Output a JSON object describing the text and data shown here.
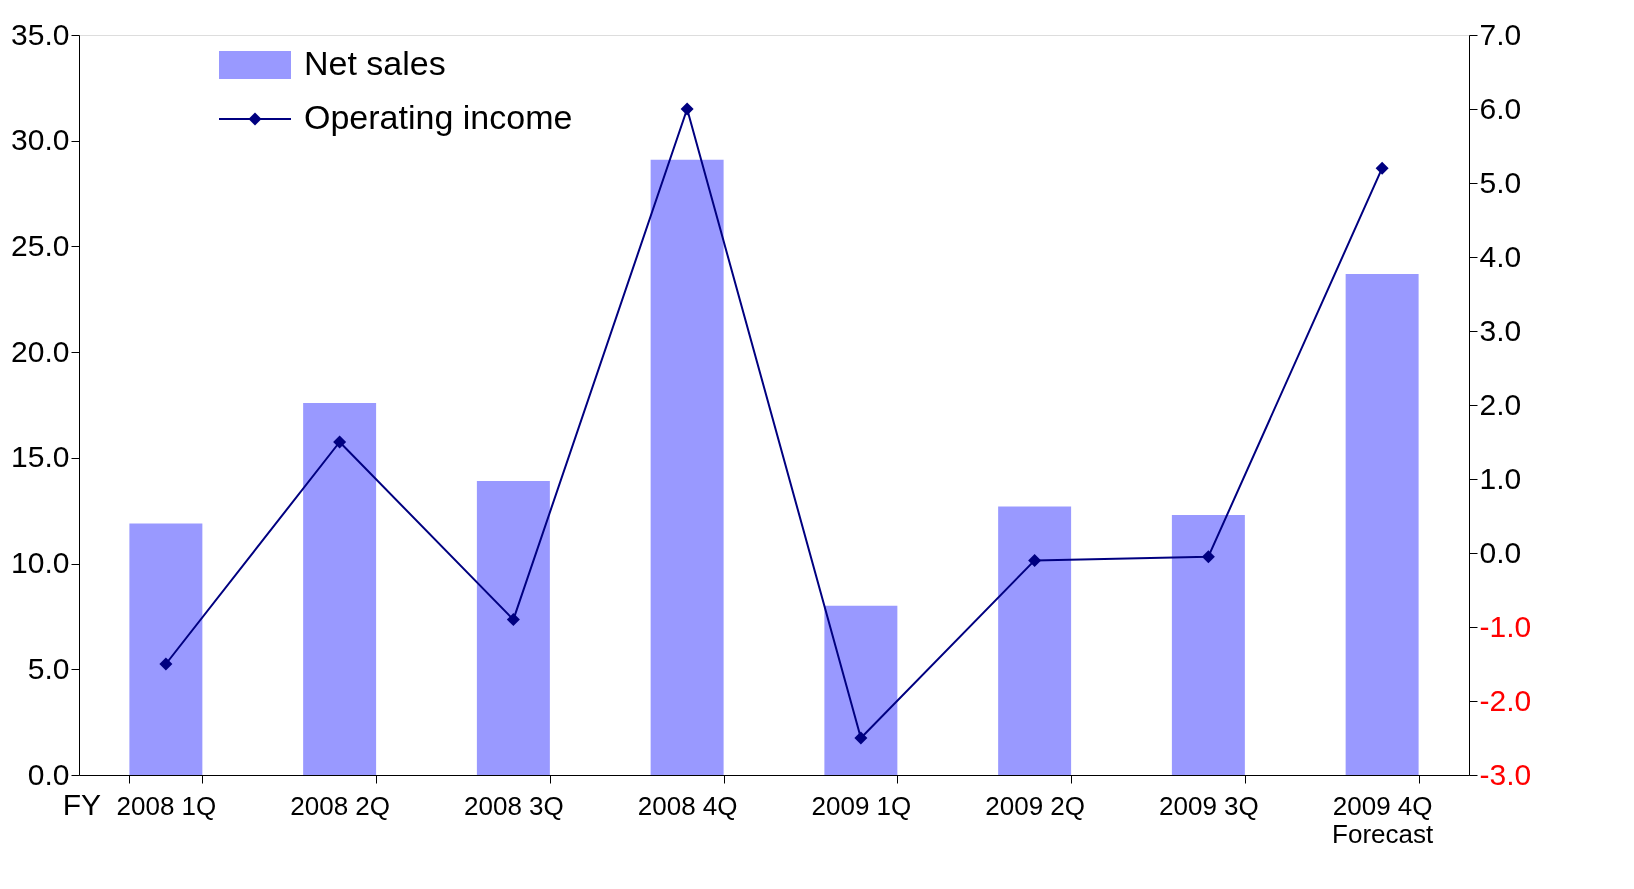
{
  "chart_data": {
    "type": "bar",
    "categories": [
      "2008 1Q",
      "2008 2Q",
      "2008 3Q",
      "2008 4Q",
      "2009 1Q",
      "2009 2Q",
      "2009 3Q",
      "2009 4Q\nForecast"
    ],
    "series": [
      {
        "name": "Net sales",
        "color": "#9999ff",
        "values": [
          11.9,
          17.6,
          13.9,
          29.1,
          8.0,
          12.7,
          12.3,
          23.7
        ]
      },
      {
        "name": "Operating income",
        "type": "line",
        "axis": "y2",
        "color": "#000080",
        "marker": "diamond",
        "line_style": "solid",
        "values": [
          -1.5,
          1.5,
          -0.9,
          6.0,
          -2.5,
          -0.1,
          -0.05,
          5.2
        ]
      }
    ],
    "ylim": [
      0,
      35
    ],
    "yticks": [
      {
        "value": 0,
        "label": "0.0"
      },
      {
        "value": 5,
        "label": "5.0"
      },
      {
        "value": 10,
        "label": "10.0"
      },
      {
        "value": 15,
        "label": "15.0"
      },
      {
        "value": 20,
        "label": "20.0"
      },
      {
        "value": 25,
        "label": "25.0"
      },
      {
        "value": 30,
        "label": "30.0"
      },
      {
        "value": 35,
        "label": "35.0"
      }
    ],
    "y2lim": [
      -3,
      7
    ],
    "y2ticks": [
      {
        "value": -3,
        "label": "-3.0"
      },
      {
        "value": -2,
        "label": "-2.0"
      },
      {
        "value": -1,
        "label": "-1.0"
      },
      {
        "value": 0,
        "label": "0.0"
      },
      {
        "value": 1,
        "label": "1.0"
      },
      {
        "value": 2,
        "label": "2.0"
      },
      {
        "value": 3,
        "label": "3.0"
      },
      {
        "value": 4,
        "label": "4.0"
      },
      {
        "value": 5,
        "label": "5.0"
      },
      {
        "value": 6,
        "label": "6.0"
      },
      {
        "value": 7,
        "label": "7.0"
      }
    ],
    "legend": "top left",
    "grid": false,
    "annotations": [
      "FY"
    ]
  }
}
